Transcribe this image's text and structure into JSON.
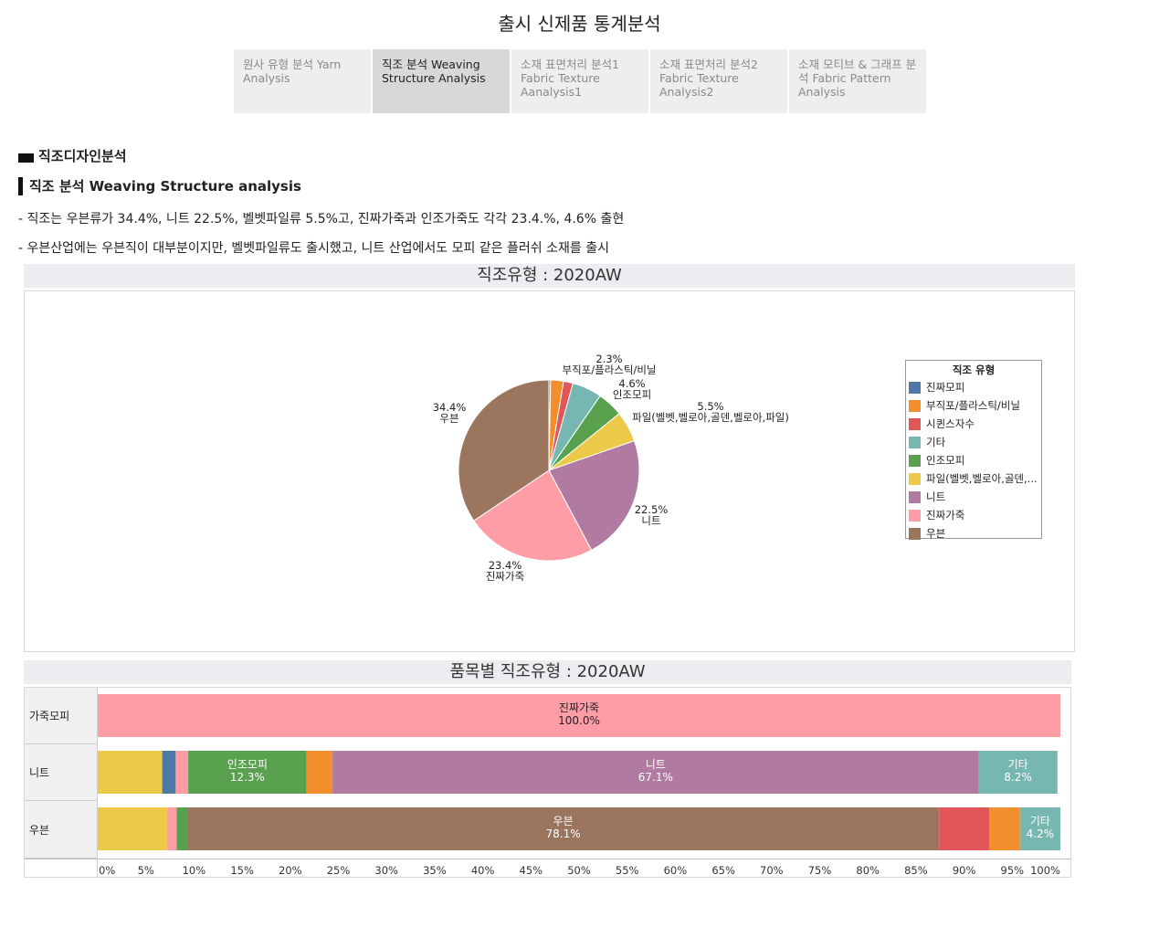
{
  "page": {
    "title": "출시 신제품 통계분석"
  },
  "tabs": [
    {
      "label": "원사 유형 분석  Yarn Analysis",
      "active": false
    },
    {
      "label": "직조 분석 Weaving Structure Analysis",
      "active": true
    },
    {
      "label": "소재 표면처리 분석1 Fabric Texture Aanalysis1",
      "active": false
    },
    {
      "label": "소재 표면처리 분석2 Fabric Texture Analysis2",
      "active": false
    },
    {
      "label": "소재 모티브 & 그래프 분석 Fabric Pattern Analysis",
      "active": false
    }
  ],
  "section": {
    "heading": "직조디자인분석",
    "subheading": "직조 분석 Weaving Structure analysis",
    "bullets": [
      "- 직조는 우븐류가 34.4%, 니트 22.5%, 벨벳파일류 5.5%고, 진짜가죽과 인조가죽도 각각 23.4.%, 4.6% 출현",
      "- 우븐산업에는 우븐직이 대부분이지만, 벨벳파일류도 출시했고, 니트 산업에서도 모피 같은 플러쉬 소재를 출시"
    ]
  },
  "chart_data": [
    {
      "type": "pie",
      "title": "직조유형 : 2020AW",
      "legend_title": "직조 유형",
      "legend_placement": "right",
      "slices": [
        {
          "name": "진짜모피",
          "legend_label": "진짜모피",
          "value": 0.3,
          "color": "#4e79a7",
          "label_pct": "",
          "label_name": ""
        },
        {
          "name": "부직포/플라스틱/비닐",
          "legend_label": "부직포/플라스틱/비닐",
          "value": 2.3,
          "color": "#f28e2b",
          "label_pct": "2.3%",
          "label_name": "부직포/플라스틱/비닐"
        },
        {
          "name": "시퀸스자수",
          "legend_label": "시퀸스자수",
          "value": 1.7,
          "color": "#e15759",
          "label_pct": "",
          "label_name": ""
        },
        {
          "name": "기타",
          "legend_label": "기타",
          "value": 5.3,
          "color": "#76b7b2",
          "label_pct": "",
          "label_name": ""
        },
        {
          "name": "인조모피",
          "legend_label": "인조모피",
          "value": 4.6,
          "color": "#59a14f",
          "label_pct": "4.6%",
          "label_name": "인조모피"
        },
        {
          "name": "파일(벨벳,벨로아,골덴,벨로아,파일)",
          "legend_label": "파일(벨벳,벨로아,골덴,...",
          "value": 5.5,
          "color": "#edc948",
          "label_pct": "5.5%",
          "label_name": "파일(벨벳,벨로아,골덴,벨로아,파일)"
        },
        {
          "name": "니트",
          "legend_label": "니트",
          "value": 22.5,
          "color": "#b07aa1",
          "label_pct": "22.5%",
          "label_name": "니트"
        },
        {
          "name": "진짜가죽",
          "legend_label": "진짜가죽",
          "value": 23.4,
          "color": "#ff9da7",
          "label_pct": "23.4%",
          "label_name": "진짜가죽"
        },
        {
          "name": "우븐",
          "legend_label": "우븐",
          "value": 34.4,
          "color": "#9c755f",
          "label_pct": "34.4%",
          "label_name": "우븐"
        }
      ]
    },
    {
      "type": "bar",
      "orientation": "horizontal",
      "stacked": true,
      "title": "품목별 직조유형 : 2020AW",
      "xlim": [
        0,
        100
      ],
      "x_ticks": [
        "0%",
        "5%",
        "10%",
        "15%",
        "20%",
        "25%",
        "30%",
        "35%",
        "40%",
        "45%",
        "50%",
        "55%",
        "60%",
        "65%",
        "70%",
        "75%",
        "80%",
        "85%",
        "90%",
        "95%",
        "100%"
      ],
      "categories": [
        "가죽모피",
        "니트",
        "우븐"
      ],
      "rows": [
        {
          "category": "가죽모피",
          "segments": [
            {
              "type": "진짜가죽",
              "value": 100.0,
              "color": "#ff9da7",
              "label_name": "진짜가죽",
              "label_pct": "100.0%"
            }
          ]
        },
        {
          "category": "니트",
          "segments": [
            {
              "type": "파일",
              "value": 6.7,
              "color": "#edc948",
              "label_name": "",
              "label_pct": ""
            },
            {
              "type": "진짜모피",
              "value": 1.4,
              "color": "#4e79a7",
              "label_name": "",
              "label_pct": ""
            },
            {
              "type": "진짜가죽",
              "value": 1.3,
              "color": "#ff9da7",
              "label_name": "",
              "label_pct": ""
            },
            {
              "type": "인조모피",
              "value": 12.3,
              "color": "#59a14f",
              "label_name": "인조모피",
              "label_pct": "12.3%"
            },
            {
              "type": "부직포/플라스틱/비닐",
              "value": 2.7,
              "color": "#f28e2b",
              "label_name": "",
              "label_pct": ""
            },
            {
              "type": "니트",
              "value": 67.1,
              "color": "#b07aa1",
              "label_name": "니트",
              "label_pct": "67.1%"
            },
            {
              "type": "기타",
              "value": 8.2,
              "color": "#76b7b2",
              "label_name": "기타",
              "label_pct": "8.2%"
            }
          ]
        },
        {
          "category": "우븐",
          "segments": [
            {
              "type": "파일",
              "value": 7.2,
              "color": "#edc948",
              "label_name": "",
              "label_pct": ""
            },
            {
              "type": "진짜가죽",
              "value": 1.0,
              "color": "#ff9da7",
              "label_name": "",
              "label_pct": ""
            },
            {
              "type": "인조모피",
              "value": 1.1,
              "color": "#59a14f",
              "label_name": "",
              "label_pct": ""
            },
            {
              "type": "우븐",
              "value": 78.1,
              "color": "#9c755f",
              "label_name": "우븐",
              "label_pct": "78.1%"
            },
            {
              "type": "시퀸스자수",
              "value": 5.2,
              "color": "#e15759",
              "label_name": "",
              "label_pct": ""
            },
            {
              "type": "부직포/플라스틱/비닐",
              "value": 3.2,
              "color": "#f28e2b",
              "label_name": "",
              "label_pct": ""
            },
            {
              "type": "기타",
              "value": 4.2,
              "color": "#76b7b2",
              "label_name": "기타",
              "label_pct": "4.2%"
            }
          ]
        }
      ]
    }
  ]
}
